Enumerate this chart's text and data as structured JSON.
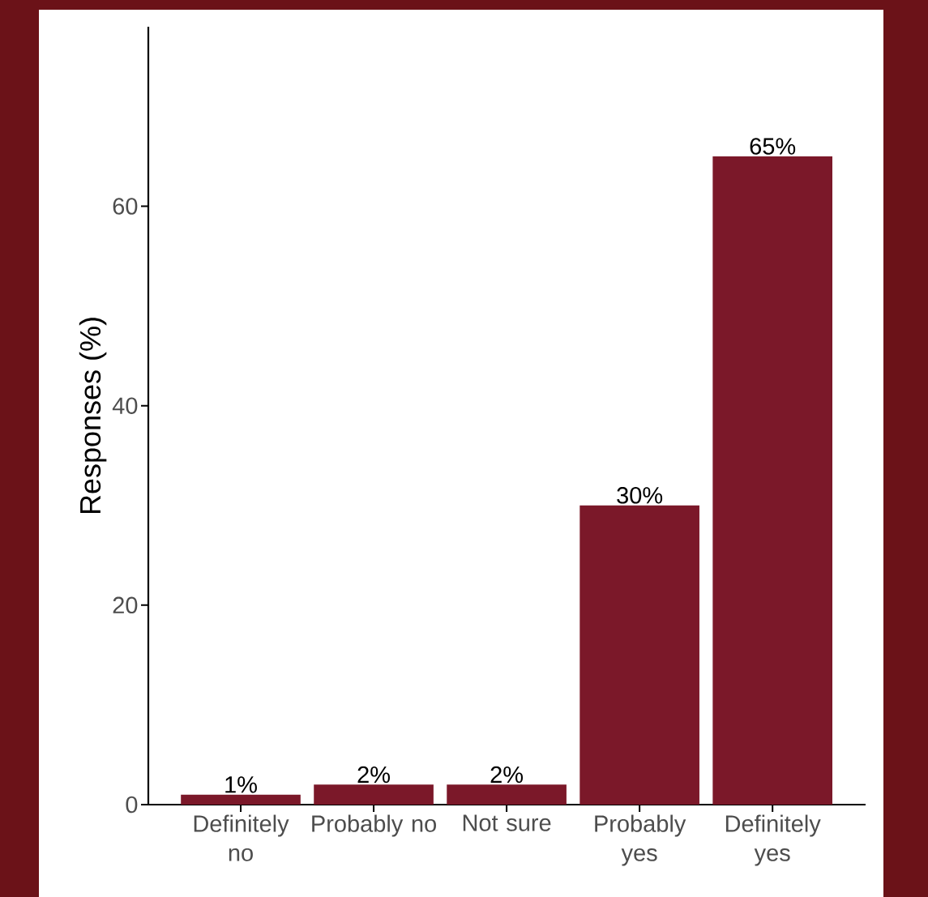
{
  "chart_data": {
    "type": "bar",
    "ylabel": "Responses (%)",
    "categories": [
      "Definitely no",
      "Probably no",
      "Not sure",
      "Probably yes",
      "Definitely yes"
    ],
    "values": [
      1,
      2,
      2,
      30,
      65
    ],
    "value_labels": [
      "1%",
      "2%",
      "2%",
      "30%",
      "65%"
    ],
    "color": "#7b1829",
    "ylim": [
      0,
      78
    ],
    "yticks": [
      0,
      20,
      40,
      60
    ],
    "grid": false
  }
}
